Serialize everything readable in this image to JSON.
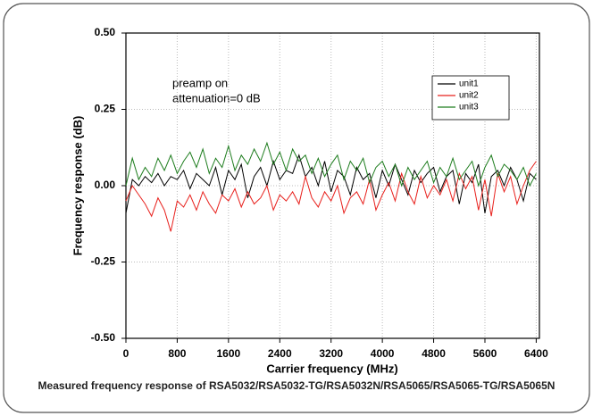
{
  "chart_data": {
    "type": "line",
    "xlabel": "Carrier frequency (MHz)",
    "ylabel": "Frequency response (dB)",
    "caption": "Measured frequency response of RSA5032/RSA5032-TG/RSA5032N/RSA5065/RSA5065-TG/RSA5065N",
    "annotations": [
      "preamp on",
      "attenuation=0 dB"
    ],
    "legend_position": "upper right",
    "grid": true,
    "xlim": [
      0,
      6450
    ],
    "ylim": [
      -0.5,
      0.5
    ],
    "xticks": [
      0,
      800,
      1600,
      2400,
      3200,
      4000,
      4800,
      5600,
      6400
    ],
    "yticks": [
      {
        "value": -0.5,
        "label": "-0.50"
      },
      {
        "value": -0.25,
        "label": "-0.25"
      },
      {
        "value": 0,
        "label": "0.00"
      },
      {
        "value": 0.25,
        "label": "0.25"
      },
      {
        "value": 0.5,
        "label": "0.50"
      }
    ],
    "x": [
      0,
      100,
      200,
      300,
      400,
      500,
      600,
      700,
      800,
      900,
      1000,
      1100,
      1200,
      1300,
      1400,
      1500,
      1600,
      1700,
      1800,
      1900,
      2000,
      2100,
      2200,
      2300,
      2400,
      2500,
      2600,
      2700,
      2800,
      2900,
      3000,
      3100,
      3200,
      3300,
      3400,
      3500,
      3600,
      3700,
      3800,
      3900,
      4000,
      4100,
      4200,
      4300,
      4400,
      4500,
      4600,
      4700,
      4800,
      4900,
      5000,
      5100,
      5200,
      5300,
      5400,
      5500,
      5600,
      5700,
      5800,
      5900,
      6000,
      6100,
      6200,
      6300,
      6400
    ],
    "series": [
      {
        "name": "unit1",
        "color": "#000000",
        "values": [
          -0.09,
          0.02,
          0.0,
          0.03,
          0.01,
          0.04,
          0.0,
          0.03,
          0.02,
          0.05,
          -0.01,
          0.04,
          0.02,
          0.0,
          0.06,
          -0.03,
          0.05,
          0.02,
          0.07,
          -0.04,
          0.03,
          0.06,
          0.0,
          0.08,
          0.02,
          0.05,
          0.04,
          0.1,
          0.03,
          0.06,
          0.0,
          0.08,
          -0.02,
          0.05,
          0.03,
          -0.03,
          0.06,
          0.02,
          0.04,
          -0.04,
          0.05,
          0.0,
          0.07,
          0.02,
          -0.03,
          0.05,
          0.01,
          0.04,
          0.06,
          -0.02,
          0.03,
          0.05,
          -0.06,
          0.04,
          0.01,
          0.07,
          -0.09,
          0.03,
          0.05,
          0.0,
          0.06,
          0.02,
          -0.05,
          0.04,
          0.02
        ]
      },
      {
        "name": "unit2",
        "color": "#e8201c",
        "values": [
          -0.05,
          0.0,
          -0.03,
          -0.06,
          -0.1,
          -0.04,
          -0.08,
          -0.15,
          -0.05,
          -0.07,
          -0.03,
          -0.08,
          -0.02,
          -0.06,
          -0.09,
          -0.03,
          -0.05,
          -0.01,
          -0.07,
          -0.02,
          -0.06,
          -0.04,
          0.0,
          -0.08,
          -0.03,
          -0.05,
          -0.02,
          -0.06,
          0.03,
          -0.04,
          -0.07,
          -0.02,
          -0.05,
          0.0,
          -0.09,
          -0.04,
          -0.02,
          -0.06,
          0.02,
          -0.08,
          -0.03,
          0.01,
          -0.05,
          0.04,
          -0.02,
          -0.06,
          0.03,
          -0.04,
          0.0,
          -0.03,
          0.02,
          -0.05,
          0.04,
          -0.01,
          0.03,
          -0.08,
          0.02,
          -0.1,
          0.04,
          -0.02,
          0.03,
          -0.06,
          0.0,
          0.05,
          0.08
        ]
      },
      {
        "name": "unit3",
        "color": "#1e7d1e",
        "values": [
          0.0,
          0.09,
          0.02,
          0.06,
          0.03,
          0.09,
          0.05,
          0.1,
          0.04,
          0.08,
          0.11,
          0.06,
          0.12,
          0.04,
          0.09,
          0.06,
          0.13,
          0.05,
          0.1,
          0.07,
          0.12,
          0.08,
          0.14,
          0.07,
          0.11,
          0.05,
          0.12,
          0.08,
          0.1,
          0.04,
          0.09,
          0.03,
          0.07,
          0.1,
          0.02,
          0.08,
          0.05,
          0.09,
          0.01,
          0.06,
          0.08,
          0.03,
          0.07,
          0.0,
          0.06,
          0.02,
          0.05,
          0.08,
          0.01,
          0.06,
          0.03,
          0.09,
          0.02,
          0.05,
          0.08,
          0.0,
          0.06,
          0.1,
          0.03,
          0.07,
          0.05,
          0.02,
          0.06,
          0.0,
          0.04
        ]
      }
    ]
  }
}
